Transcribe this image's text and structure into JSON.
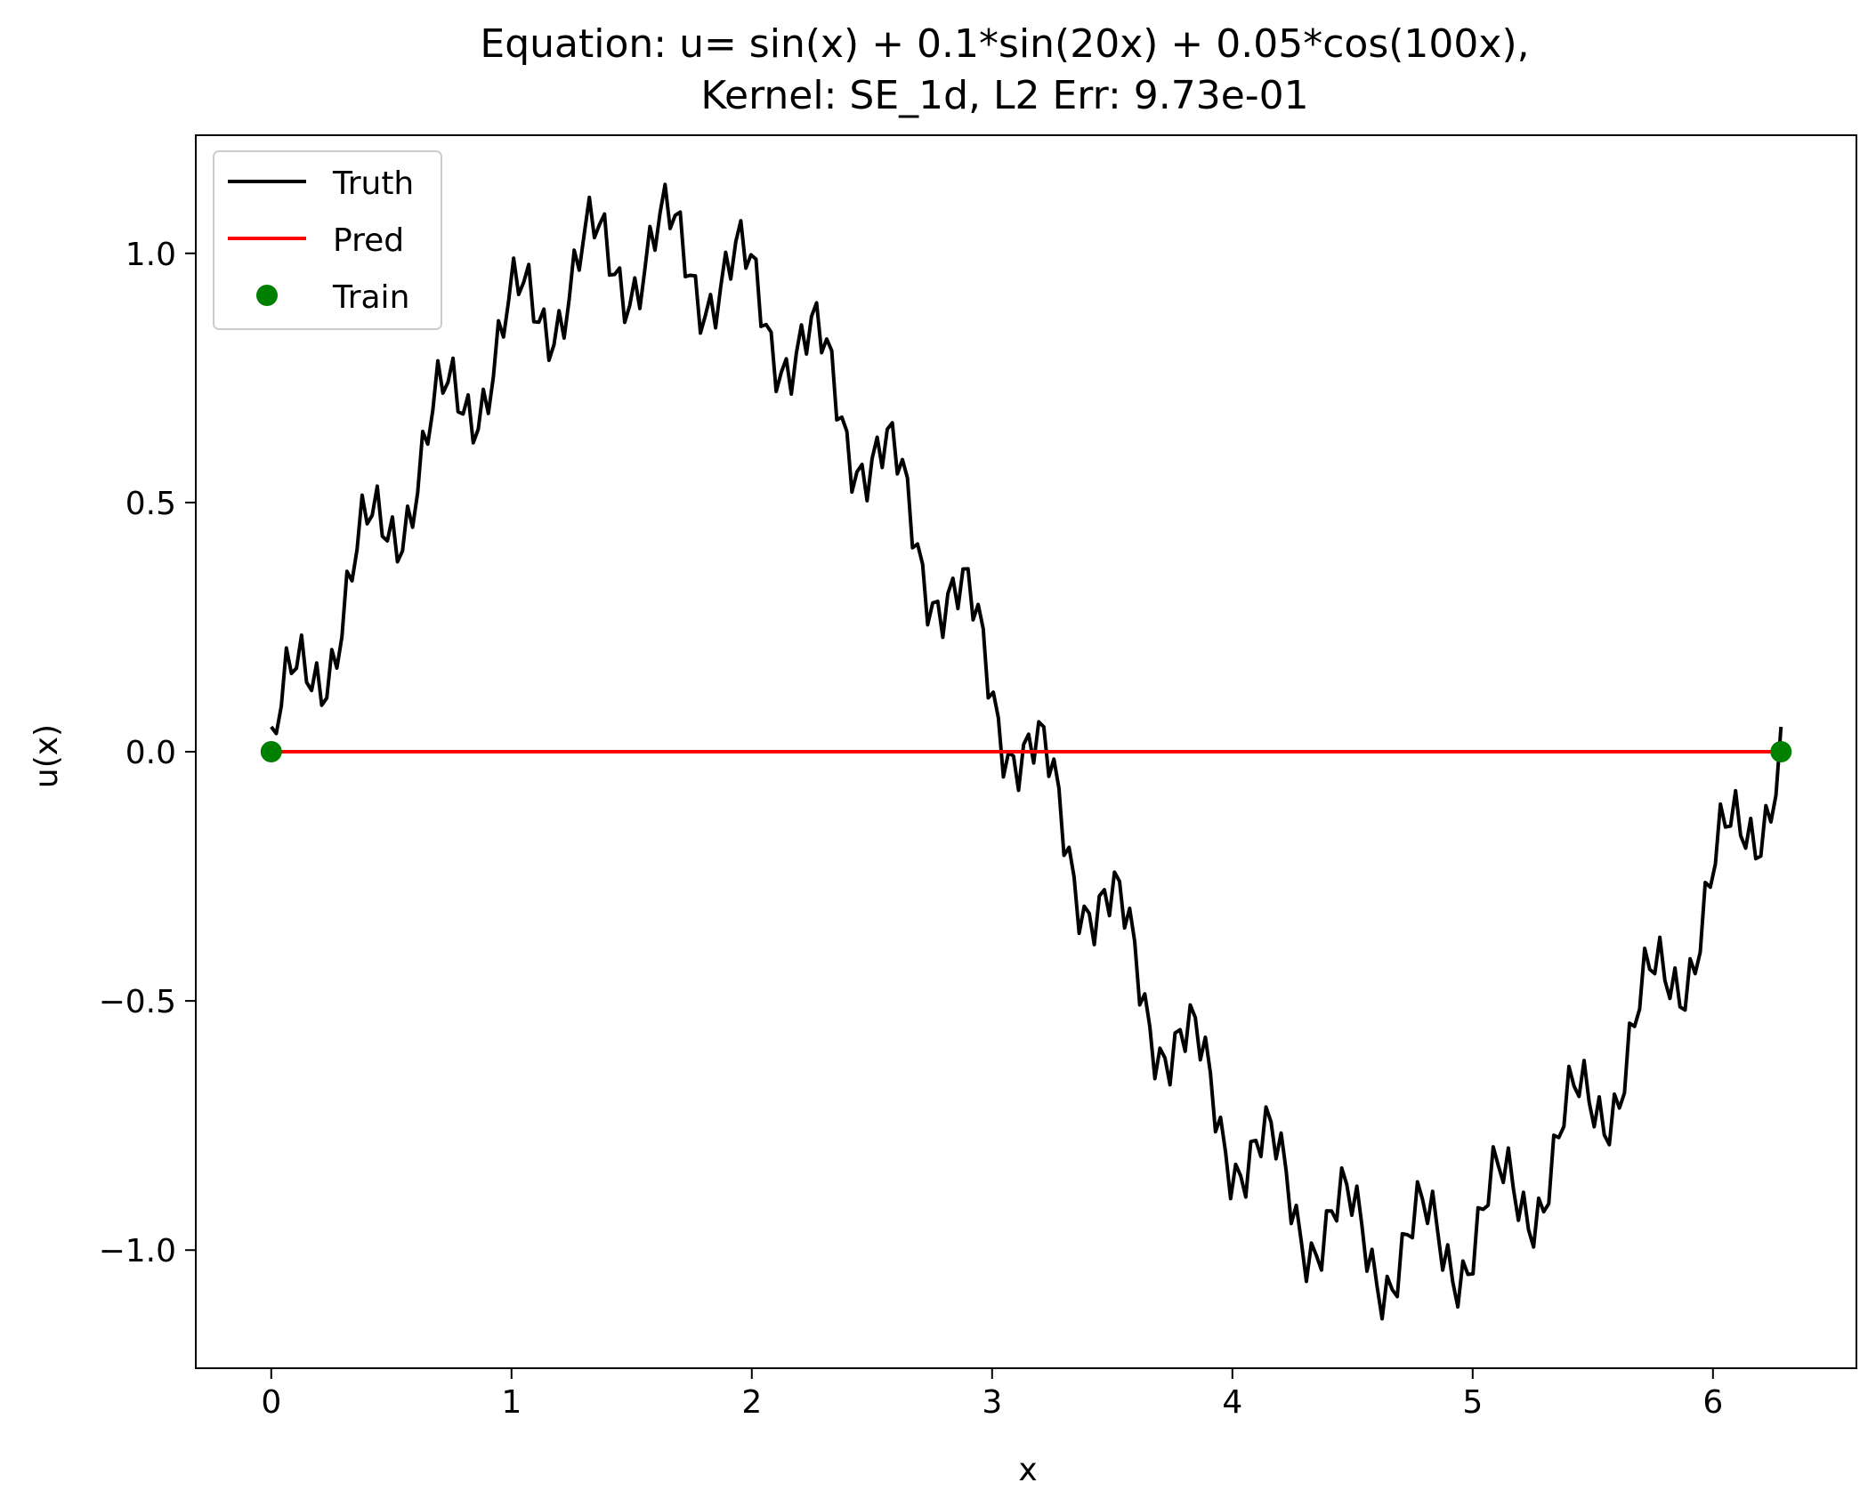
{
  "chart_data": {
    "type": "line",
    "title_line1": "Equation: u= sin(x) + 0.1*sin(20x) + 0.05*cos(100x),",
    "title_line2": "Kernel: SE_1d,   L2 Err: 9.73e-01",
    "xlabel": "x",
    "ylabel": "u(x)",
    "xlim": [
      -0.314,
      6.597
    ],
    "ylim": [
      -1.237,
      1.237
    ],
    "xticks": [
      0,
      1,
      2,
      3,
      4,
      5,
      6
    ],
    "xtick_labels": [
      "0",
      "1",
      "2",
      "3",
      "4",
      "5",
      "6"
    ],
    "yticks": [
      -1.0,
      -0.5,
      0.0,
      0.5,
      1.0
    ],
    "ytick_labels": [
      "−1.0",
      "−0.5",
      "0.0",
      "0.5",
      "1.0"
    ],
    "grid": false,
    "legend_position": "top-left",
    "series": [
      {
        "name": "Truth",
        "kind": "line",
        "color": "#000000",
        "function": "sin(x) + 0.1*sin(20x) + 0.05*cos(100x)",
        "x_range": [
          0,
          6.2832
        ],
        "n_samples": 300
      },
      {
        "name": "Pred",
        "kind": "line",
        "color": "#ff0000",
        "x": [
          0,
          6.2832
        ],
        "y": [
          0,
          0
        ]
      },
      {
        "name": "Train",
        "kind": "scatter",
        "color": "#008000",
        "x": [
          0,
          6.2832
        ],
        "y": [
          0,
          0
        ]
      }
    ]
  }
}
